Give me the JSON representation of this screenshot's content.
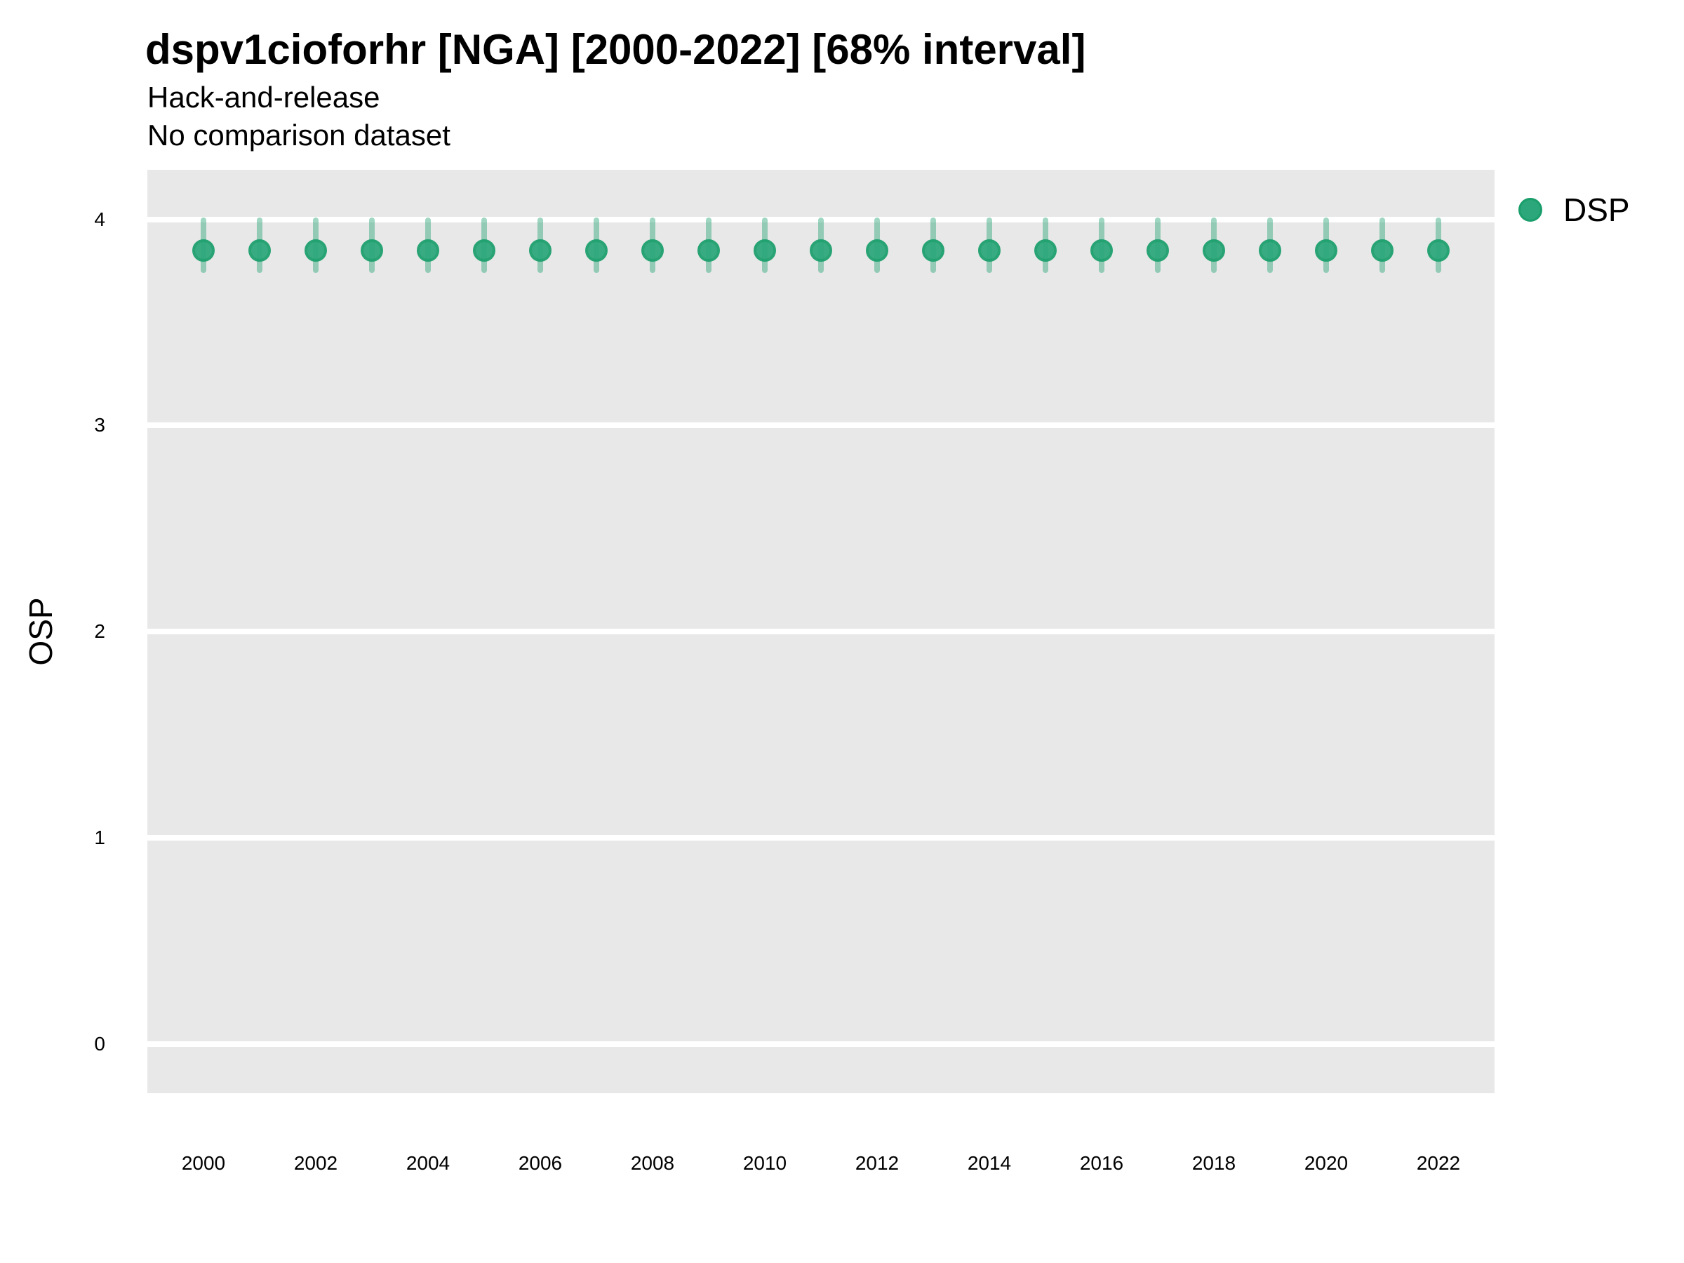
{
  "header": {
    "title": "dspv1cioforhr [NGA] [2000-2022] [68% interval]",
    "subtitle_line1": "Hack-and-release",
    "subtitle_line2": "No comparison dataset"
  },
  "legend": {
    "position": "right",
    "items": [
      {
        "label": "DSP",
        "marker": "circle",
        "color": "#2ca77b"
      }
    ]
  },
  "colors": {
    "background": "#ffffff",
    "plot_background": "#e8e8e8",
    "gridline": "#ffffff",
    "text": "#000000",
    "point_fill": "#2ca77b",
    "point_stroke": "#1a9e6c",
    "interval_band": "rgba(44,167,123,0.45)"
  },
  "chart_data": {
    "type": "scatter",
    "subtype": "pointrange",
    "title": "dspv1cioforhr [NGA] [2000-2022] [68% interval]",
    "subtitle": [
      "Hack-and-release",
      "No comparison dataset"
    ],
    "xlabel": "",
    "ylabel": "OSP",
    "xlim": [
      1999,
      2023
    ],
    "ylim": [
      -0.24,
      4.24
    ],
    "xticks": [
      2000,
      2002,
      2004,
      2006,
      2008,
      2010,
      2012,
      2014,
      2016,
      2018,
      2020,
      2022
    ],
    "yticks": [
      0,
      1,
      2,
      3,
      4
    ],
    "grid": "horizontal-major-only",
    "legend_position": "right",
    "interval_level": "68%",
    "series": [
      {
        "name": "DSP",
        "x": [
          2000,
          2001,
          2002,
          2003,
          2004,
          2005,
          2006,
          2007,
          2008,
          2009,
          2010,
          2011,
          2012,
          2013,
          2014,
          2015,
          2016,
          2017,
          2018,
          2019,
          2020,
          2021,
          2022
        ],
        "values": [
          3.85,
          3.85,
          3.85,
          3.85,
          3.85,
          3.85,
          3.85,
          3.85,
          3.85,
          3.85,
          3.85,
          3.85,
          3.85,
          3.85,
          3.85,
          3.85,
          3.85,
          3.85,
          3.85,
          3.85,
          3.85,
          3.85,
          3.85
        ],
        "lower_68": [
          3.74,
          3.74,
          3.74,
          3.74,
          3.74,
          3.74,
          3.74,
          3.74,
          3.74,
          3.74,
          3.74,
          3.74,
          3.74,
          3.74,
          3.74,
          3.74,
          3.74,
          3.74,
          3.74,
          3.74,
          3.74,
          3.74,
          3.74
        ],
        "upper_68": [
          4.01,
          4.01,
          4.01,
          4.01,
          4.01,
          4.01,
          4.01,
          4.01,
          4.01,
          4.01,
          4.01,
          4.01,
          4.01,
          4.01,
          4.01,
          4.01,
          4.01,
          4.01,
          4.01,
          4.01,
          4.01,
          4.01,
          4.01
        ]
      }
    ]
  }
}
